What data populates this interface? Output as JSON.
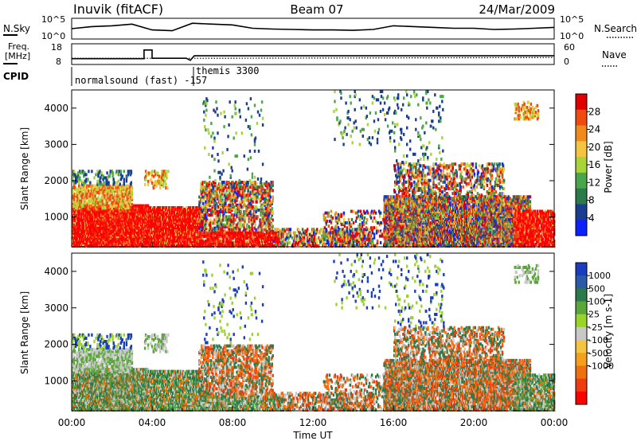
{
  "header": {
    "station": "Inuvik (fitACF)",
    "beam": "Beam 07",
    "date": "24/Mar/2009"
  },
  "panel_labels": {
    "nsky": "N.Sky",
    "nsearch": "N.Search",
    "freq_line1": "Freq.",
    "freq_line2": "[MHz]",
    "nave": "Nave",
    "cpid": "CPID",
    "cpid_mode1": "normalsound (fast) -157",
    "cpid_mode2": "themis 3300"
  },
  "colors": {
    "power": [
      "#0b22ff",
      "#1a3d8f",
      "#2a7a4a",
      "#4aa64a",
      "#a8d43a",
      "#f5c542",
      "#f08a1a",
      "#f04a10",
      "#e00000",
      "#ff0000"
    ],
    "velocity": [
      "#1a3dbf",
      "#2a5aa8",
      "#2a7a4a",
      "#5aa63a",
      "#9ad42a",
      "#c8c8c8",
      "#f5c542",
      "#f5a01a",
      "#f07010",
      "#f03a10",
      "#ff0000"
    ]
  },
  "chart_data": [
    {
      "type": "line",
      "name": "nsky-nsearch",
      "ylabel_left": "N.Sky",
      "ylabel_right": "N.Search",
      "yticks_left": [
        "10^5",
        "10^0"
      ],
      "yticks_right": [
        "10^5",
        "10^0"
      ],
      "x": [
        0,
        1,
        2,
        3,
        4,
        5,
        6,
        7,
        8,
        9,
        10,
        11,
        12,
        13,
        14,
        15,
        16,
        17,
        18,
        19,
        20,
        21,
        22,
        23,
        24
      ],
      "values": [
        2.5,
        3.0,
        3.2,
        3.6,
        2.2,
        2.0,
        3.8,
        3.6,
        3.4,
        2.6,
        2.4,
        2.3,
        2.2,
        2.2,
        2.1,
        2.3,
        3.2,
        3.0,
        2.8,
        2.6,
        2.6,
        2.3,
        2.4,
        2.6,
        2.8
      ]
    },
    {
      "type": "line",
      "name": "freq-nave",
      "ylabel_left": "Freq. [MHz]",
      "ylabel_right": "Nave",
      "yticks_left": [
        "18",
        "8"
      ],
      "yticks_right": [
        "60",
        "0"
      ],
      "freq": {
        "x": [
          0,
          3.6,
          3.6,
          4.0,
          4.0,
          5.7,
          5.9,
          6.1,
          24
        ],
        "values": [
          10.8,
          10.8,
          15.0,
          15.0,
          11.0,
          11.0,
          10.0,
          12.2,
          12.2
        ]
      },
      "nave": {
        "x": [
          0,
          6,
          24
        ],
        "values": [
          18,
          18,
          20
        ]
      }
    },
    {
      "type": "heatmap",
      "name": "power",
      "ylabel": "Slant Range [km]",
      "yticks": [
        1000,
        2000,
        3000,
        4000
      ],
      "ylim": [
        180,
        4500
      ],
      "xlim": [
        0,
        24
      ],
      "colorbar_label": "Power [dB]",
      "colorbar_ticks": [
        4,
        8,
        12,
        16,
        20,
        24,
        28
      ],
      "colorbar_range": [
        0,
        32
      ]
    },
    {
      "type": "heatmap",
      "name": "velocity",
      "ylabel": "Slant Range [km]",
      "yticks": [
        1000,
        2000,
        3000,
        4000
      ],
      "ylim": [
        180,
        4500
      ],
      "xlim": [
        0,
        24
      ],
      "colorbar_label": "Velocity [m s-1]",
      "colorbar_ticks": [
        "1000",
        "500",
        "100",
        "25",
        "-25",
        "-100",
        "-500",
        "-1000"
      ]
    }
  ],
  "time_axis": {
    "label": "Time UT",
    "ticks": [
      "00:00",
      "04:00",
      "08:00",
      "12:00",
      "16:00",
      "20:00",
      "00:00"
    ]
  }
}
